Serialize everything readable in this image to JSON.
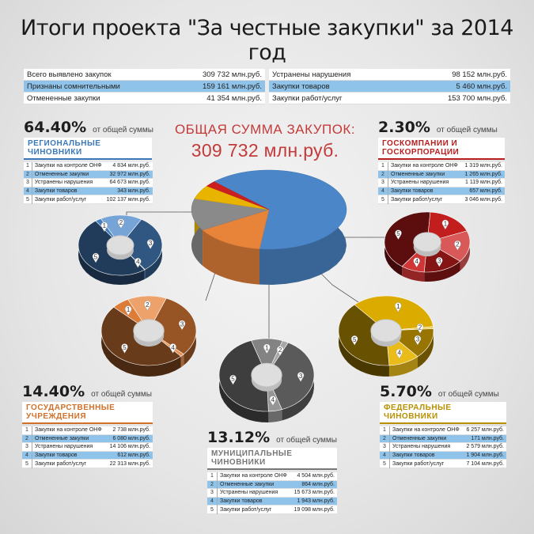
{
  "title": "Итоги проекта \"За честные закупки\" за 2014 год",
  "summary": {
    "left": [
      {
        "label": "Всего выявлено закупок",
        "value": "309 732 млн.руб.",
        "hl": false
      },
      {
        "label": "Признаны сомнительными",
        "value": "159 161 млн.руб.",
        "hl": true
      },
      {
        "label": "Отмененные закупки",
        "value": "41 354 млн.руб.",
        "hl": false
      }
    ],
    "right": [
      {
        "label": "Устранены нарушения",
        "value": "98 152 млн.руб.",
        "hl": false
      },
      {
        "label": "Закупки товаров",
        "value": "5 460 млн.руб.",
        "hl": true
      },
      {
        "label": "Закупки работ/услуг",
        "value": "153 700 млн.руб.",
        "hl": false
      }
    ]
  },
  "total": {
    "label": "ОБЩАЯ СУММА ЗАКУПОК:",
    "value": "309 732 млн.руб."
  },
  "share_suffix": "от общей суммы",
  "colors": {
    "regional": "#4a86c8",
    "state": "#e8833a",
    "municipal": "#8a8a8a",
    "federal": "#e8b400",
    "corporations": "#cc2020",
    "title_red": "#c43a3a",
    "highlight": "#8fc3ea"
  },
  "chart_data": [
    {
      "type": "pie",
      "title": "ОБЩАЯ СУММА ЗАКУПОК: 309 732 млн.руб.",
      "categories": [
        "РЕГИОНАЛЬНЫЕ ЧИНОВНИКИ",
        "ГОСУДАРСТВЕННЫЕ УЧРЕЖДЕНИЯ",
        "МУНИЦИПАЛЬНЫЕ ЧИНОВНИКИ",
        "ФЕДЕРАЛЬНЫЕ ЧИНОВНИКИ",
        "ГОСКОМПАНИИ И ГОСКОРПОРАЦИИ"
      ],
      "values": [
        64.4,
        14.4,
        13.12,
        5.7,
        2.3
      ],
      "unit": "%"
    },
    {
      "type": "pie",
      "key": "regional",
      "share": "64.40%",
      "title": "РЕГИОНАЛЬНЫЕ ЧИНОВНИКИ",
      "categories": [
        "Закупки на контроле ОНФ",
        "Отмененные закупки",
        "Устранены нарушения",
        "Закупки товаров",
        "Закупки работ/услуг"
      ],
      "values": [
        4834,
        32972,
        64673,
        343,
        102137
      ],
      "labels": [
        "4 834 млн.руб.",
        "32 972 млн.руб.",
        "64 673 млн.руб.",
        "343 млн.руб.",
        "102 137 млн.руб."
      ],
      "unit": "млн.руб."
    },
    {
      "type": "pie",
      "key": "corporations",
      "share": "2.30%",
      "title": "ГОСКОМПАНИИ И ГОСКОРПОРАЦИИ",
      "categories": [
        "Закупки на контроле ОНФ",
        "Отмененные закупки",
        "Устранены нарушения",
        "Закупки товаров",
        "Закупки работ/услуг"
      ],
      "values": [
        1319,
        1265,
        1119,
        657,
        3046
      ],
      "labels": [
        "1 319 млн.руб.",
        "1 265 млн.руб.",
        "1 119 млн.руб.",
        "657 млн.руб.",
        "3 046 млн.руб."
      ],
      "unit": "млн.руб."
    },
    {
      "type": "pie",
      "key": "state",
      "share": "14.40%",
      "title": "ГОСУДАРСТВЕННЫЕ УЧРЕЖДЕНИЯ",
      "categories": [
        "Закупки на контроле ОНФ",
        "Отмененные закупки",
        "Устранены нарушения",
        "Закупки товаров",
        "Закупки работ/услуг"
      ],
      "values": [
        2738,
        6080,
        14106,
        612,
        22313
      ],
      "labels": [
        "2 738 млн.руб.",
        "6 080 млн.руб.",
        "14 106 млн.руб.",
        "612 млн.руб.",
        "22 313 млн.руб."
      ],
      "unit": "млн.руб."
    },
    {
      "type": "pie",
      "key": "municipal",
      "share": "13.12%",
      "title": "МУНИЦИПАЛЬНЫЕ ЧИНОВНИКИ",
      "categories": [
        "Закупки на контроле ОНФ",
        "Отмененные закупки",
        "Устранены нарушения",
        "Закупки товаров",
        "Закупки работ/услуг"
      ],
      "values": [
        4504,
        864,
        15673,
        1943,
        19098
      ],
      "labels": [
        "4 504 млн.руб.",
        "864 млн.руб.",
        "15 673 млн.руб.",
        "1 943 млн.руб.",
        "19 098 млн.руб."
      ],
      "unit": "млн.руб."
    },
    {
      "type": "pie",
      "key": "federal",
      "share": "5.70%",
      "title": "ФЕДЕРАЛЬНЫЕ ЧИНОВНИКИ",
      "categories": [
        "Закупки на контроле ОНФ",
        "Отмененные закупки",
        "Устранены нарушения",
        "Закупки товаров",
        "Закупки работ/услуг"
      ],
      "values": [
        6257,
        171,
        2579,
        1904,
        7104
      ],
      "labels": [
        "6 257 млн.руб.",
        "171 млн.руб.",
        "2 579 млн.руб.",
        "1 904 млн.руб.",
        "7 104 млн.руб."
      ],
      "unit": "млн.руб."
    }
  ]
}
